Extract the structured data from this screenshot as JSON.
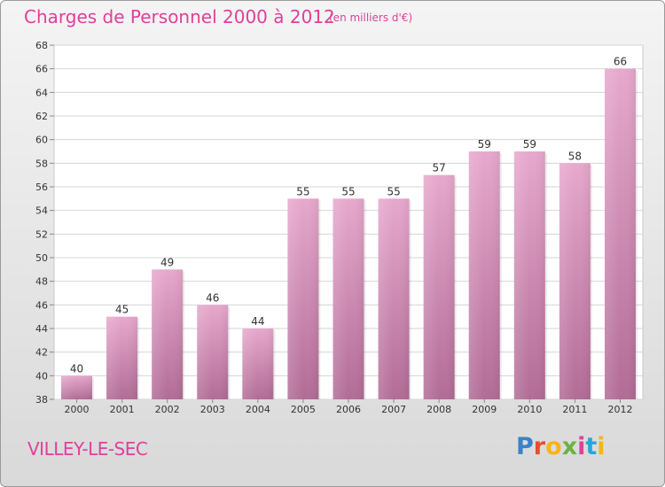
{
  "header": {
    "title": "Charges de Personnel 2000 à 2012",
    "subtitle": "(en milliers d'€)"
  },
  "footer": {
    "town": "VILLEY-LE-SEC",
    "logo_letters": [
      "P",
      "r",
      "o",
      "x",
      "i",
      "t",
      "i"
    ]
  },
  "colors": {
    "bar_top": "#e7a8cd",
    "bar_bottom": "#b26c96",
    "text": "#e0409a"
  },
  "chart_data": {
    "type": "bar",
    "title": "Charges de Personnel 2000 à 2012",
    "subtitle": "(en milliers d'€)",
    "categories": [
      "2000",
      "2001",
      "2002",
      "2003",
      "2004",
      "2005",
      "2006",
      "2007",
      "2008",
      "2009",
      "2010",
      "2011",
      "2012"
    ],
    "values": [
      40,
      45,
      49,
      46,
      44,
      55,
      55,
      55,
      57,
      59,
      59,
      58,
      66
    ],
    "ylim": [
      38,
      68
    ],
    "yticks": [
      38,
      40,
      42,
      44,
      46,
      48,
      50,
      52,
      54,
      56,
      58,
      60,
      62,
      64,
      66,
      68
    ],
    "grid": true,
    "data_labels": true
  }
}
